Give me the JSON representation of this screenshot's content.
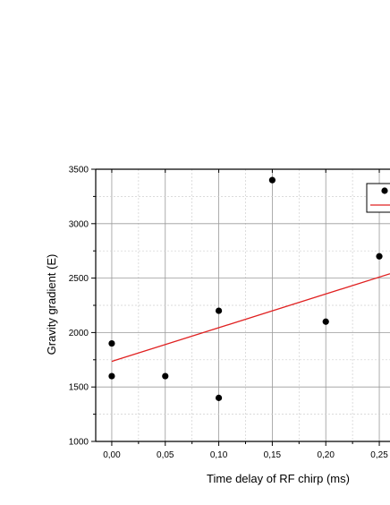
{
  "chart_data": {
    "type": "scatter",
    "xlabel": "Time delay of RF chirp (ms)",
    "ylabel": "Gravity gradient (E)",
    "xlim": [
      -0.015,
      0.26
    ],
    "ylim": [
      1000,
      3500
    ],
    "xticks": [
      0.0,
      0.05,
      0.1,
      0.15,
      0.2,
      0.25
    ],
    "xtick_labels": [
      "0,00",
      "0,05",
      "0,10",
      "0,15",
      "0,20",
      "0,25"
    ],
    "yticks": [
      1000,
      1500,
      2000,
      2500,
      3000,
      3500
    ],
    "ytick_labels": [
      "1000",
      "1500",
      "2000",
      "2500",
      "3000",
      "3500"
    ],
    "grid": true,
    "legend_placement": "top-right",
    "series": [
      {
        "kind": "points",
        "color": "#000000",
        "x": [
          0.0,
          0.0,
          0.05,
          0.1,
          0.1,
          0.15,
          0.2,
          0.25
        ],
        "y": [
          1900,
          1600,
          1600,
          2200,
          1400,
          3400,
          2100,
          2700
        ]
      },
      {
        "kind": "fit-line",
        "color": "#e02020",
        "x": [
          0.0,
          0.26
        ],
        "y": [
          1735,
          2540
        ]
      }
    ]
  }
}
